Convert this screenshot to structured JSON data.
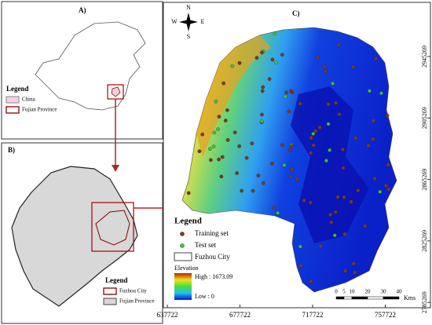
{
  "panel_a": {
    "label": "A)",
    "legend": {
      "title": "Legend",
      "items": [
        "China",
        "Fujian Province"
      ]
    }
  },
  "panel_b": {
    "label": "B)",
    "legend": {
      "title": "Legend",
      "items": [
        "Fuzhou City",
        "Fujian Province"
      ]
    }
  },
  "panel_c": {
    "label": "C)",
    "compass": [
      "N",
      "S",
      "W",
      "E"
    ],
    "legend": {
      "title": "Legend",
      "items": [
        "Training set",
        "Test set",
        "Fuzhou City"
      ]
    },
    "elevation": {
      "title": "Elevation",
      "high": "High : 1673.09",
      "low": "Low : 0"
    },
    "scale_bar": {
      "ticks": [
        0,
        5,
        10,
        20,
        30,
        40
      ],
      "unit": "Kms"
    },
    "x_ticks": [
      637722,
      677722,
      717722,
      757722
    ],
    "y_ticks": [
      2945269,
      2905269,
      2865269,
      2825269,
      2785269
    ]
  }
}
